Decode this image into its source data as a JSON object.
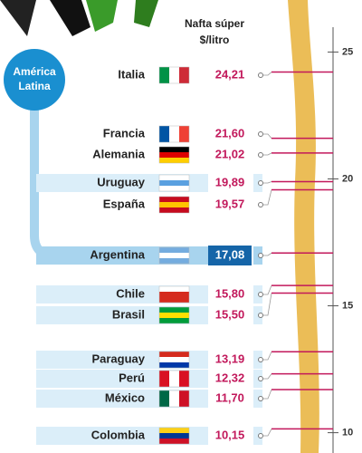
{
  "chart_data": {
    "type": "dot",
    "title": "Nafta súper",
    "subtitle": "$/litro",
    "group_label": [
      "América",
      "Latina"
    ],
    "categories": [
      "Italia",
      "Francia",
      "Alemania",
      "Uruguay",
      "España",
      "Argentina",
      "Chile",
      "Brasil",
      "Paraguay",
      "Perú",
      "México",
      "Colombia"
    ],
    "values": [
      24.21,
      21.6,
      21.02,
      19.89,
      19.57,
      17.08,
      15.8,
      15.5,
      13.19,
      12.32,
      11.7,
      10.15
    ],
    "value_labels": [
      "24,21",
      "21,60",
      "21,02",
      "19,89",
      "19,57",
      "17,08",
      "15,80",
      "15,50",
      "13,19",
      "12,32",
      "11,70",
      "10,15"
    ],
    "color": "#c2185b",
    "ylim": [
      9.2,
      25.8
    ],
    "yticks": [
      10,
      15,
      20,
      25
    ]
  }
}
